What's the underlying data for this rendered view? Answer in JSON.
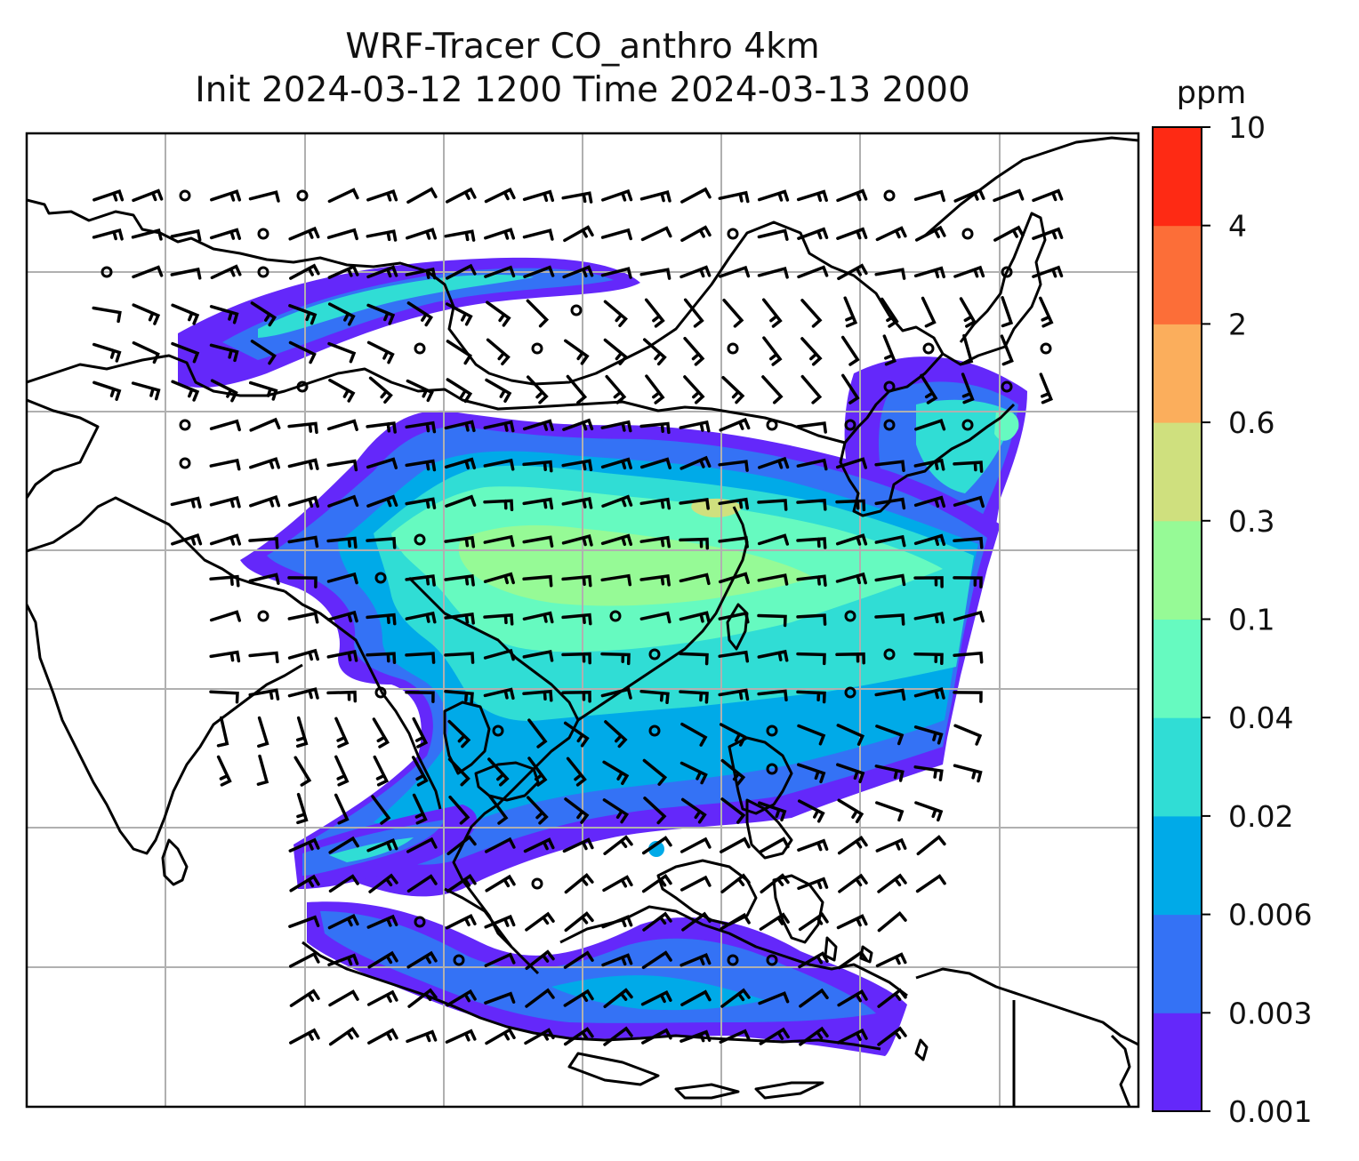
{
  "title": {
    "line1": "WRF-Tracer CO_anthro 4km",
    "line2": "Init 2024-03-12 1200 Time 2024-03-13 2000"
  },
  "colorbar": {
    "unit": "ppm",
    "ticks": [
      "0.001",
      "0.003",
      "0.006",
      "0.02",
      "0.04",
      "0.1",
      "0.3",
      "0.6",
      "2",
      "4",
      "10"
    ],
    "colors": [
      "#6428fa",
      "#3472f5",
      "#00aae8",
      "#30ddd5",
      "#66fac0",
      "#96fa96",
      "#cfe07e",
      "#fbae5c",
      "#fc6e38",
      "#fe2a14"
    ]
  },
  "map": {
    "background": "#ffffff",
    "coastline_color": "#000000",
    "gridline_color": "#b0b0b0",
    "overlay": "wind-barbs",
    "field": "CO_anthro"
  }
}
